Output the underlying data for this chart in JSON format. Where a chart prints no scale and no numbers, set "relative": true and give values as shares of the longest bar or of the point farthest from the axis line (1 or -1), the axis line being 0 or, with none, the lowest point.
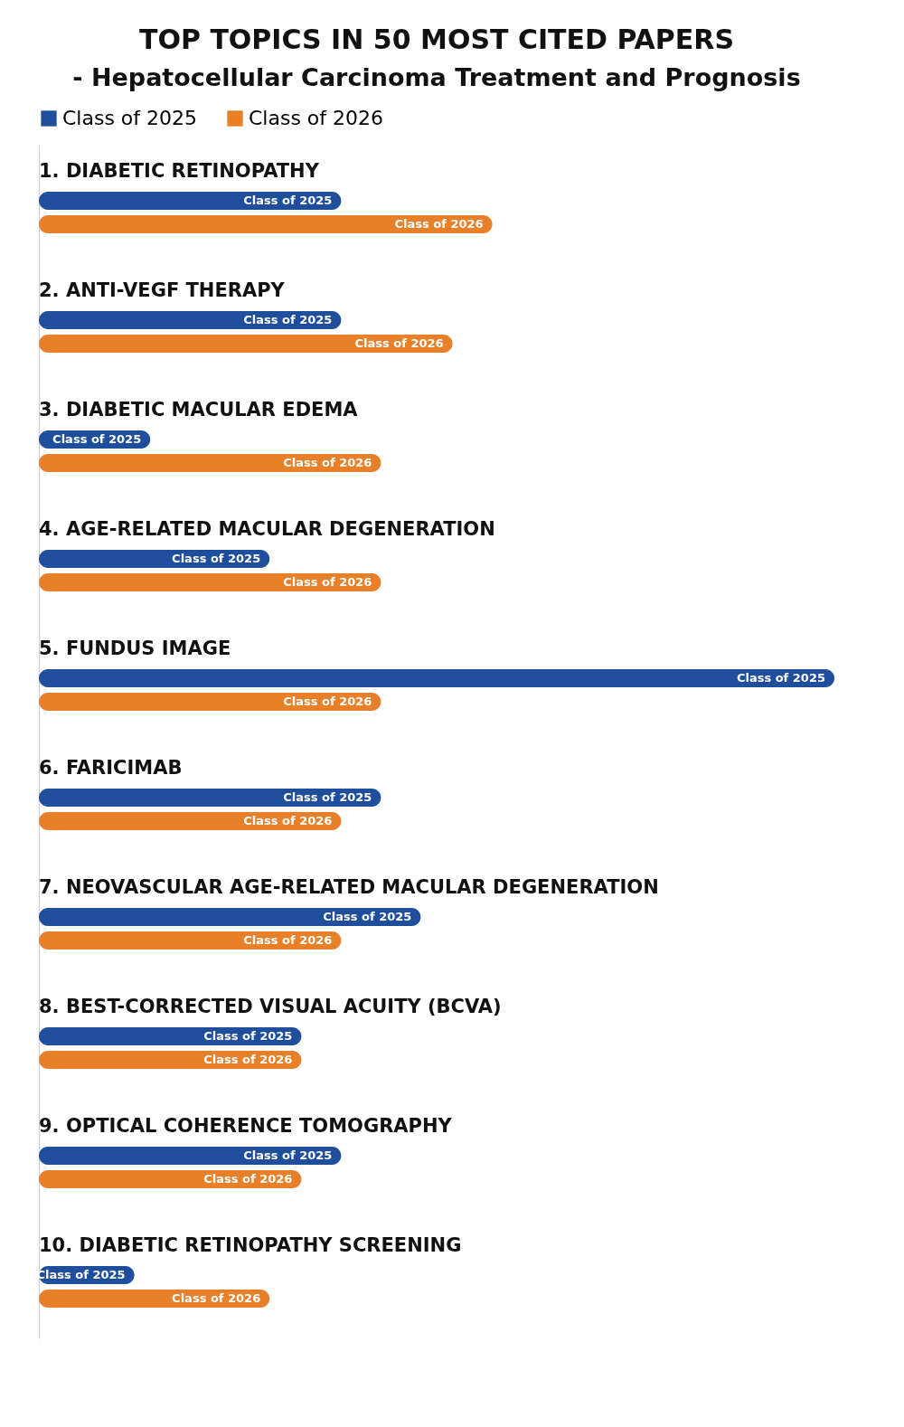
{
  "chart_data": {
    "type": "bar",
    "orientation": "horizontal",
    "relative": true,
    "title": "TOP TOPICS IN 50 MOST CITED PAPERS",
    "subtitle": "- Hepatocellular Carcinoma Treatment and Prognosis",
    "categories": [
      "1. DIABETIC RETINOPATHY",
      "2. ANTI-VEGF THERAPY",
      "3. DIABETIC MACULAR EDEMA",
      "4. AGE-RELATED MACULAR DEGENERATION",
      "5. FUNDUS IMAGE",
      "6. FARICIMAB",
      "7. NEOVASCULAR AGE-RELATED MACULAR DEGENERATION",
      "8. BEST-CORRECTED VISUAL ACUITY (BCVA)",
      "9. OPTICAL COHERENCE TOMOGRAPHY",
      "10. DIABETIC RETINOPATHY SCREENING"
    ],
    "series": [
      {
        "name": "Class of 2025",
        "color": "#1f4e9c",
        "values": [
          0.38,
          0.38,
          0.14,
          0.29,
          1,
          0.43,
          0.48,
          0.33,
          0.38,
          0.12
        ]
      },
      {
        "name": "Class of 2026",
        "color": "#e8802a",
        "values": [
          0.57,
          0.52,
          0.43,
          0.43,
          0.43,
          0.38,
          0.38,
          0.33,
          0.33,
          0.29
        ]
      }
    ],
    "legend": "top"
  }
}
